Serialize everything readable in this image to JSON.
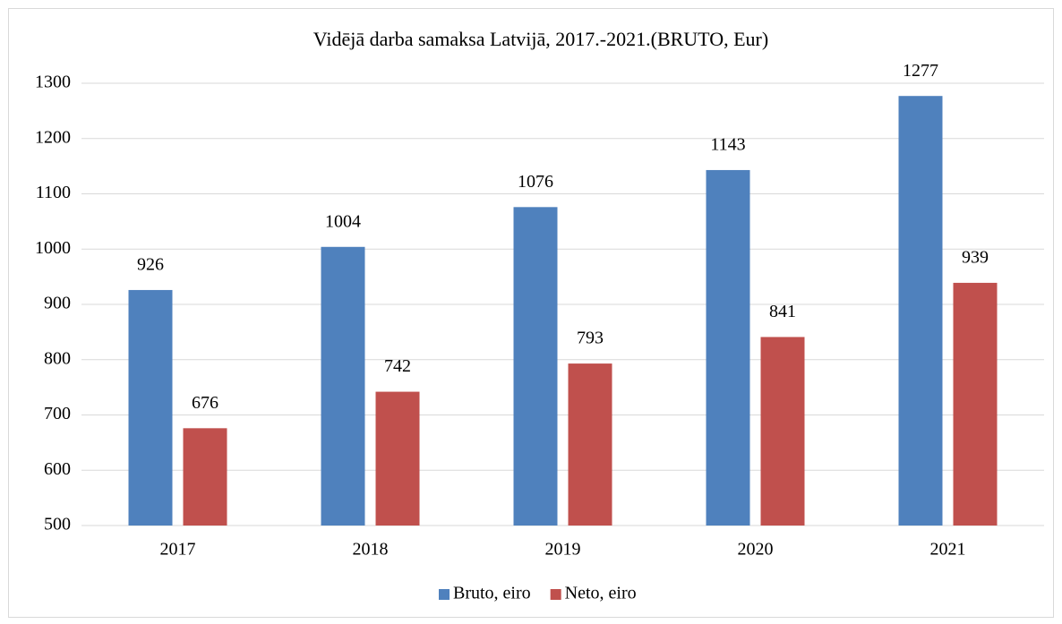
{
  "chart_data": {
    "type": "bar",
    "title": "Vidējā darba samaksa Latvijā, 2017.-2021.(BRUTO, Eur)",
    "categories": [
      "2017",
      "2018",
      "2019",
      "2020",
      "2021"
    ],
    "series": [
      {
        "name": "Bruto, eiro",
        "color": "#4f81bd",
        "values": [
          926,
          1004,
          1076,
          1143,
          1277
        ]
      },
      {
        "name": "Neto, eiro",
        "color": "#c0504d",
        "values": [
          676,
          742,
          793,
          841,
          939
        ]
      }
    ],
    "ylim": [
      500,
      1300
    ],
    "yticks": [
      500,
      600,
      700,
      800,
      900,
      1000,
      1100,
      1200,
      1300
    ],
    "grid": true,
    "legend": "bottom",
    "data_labels": true
  }
}
